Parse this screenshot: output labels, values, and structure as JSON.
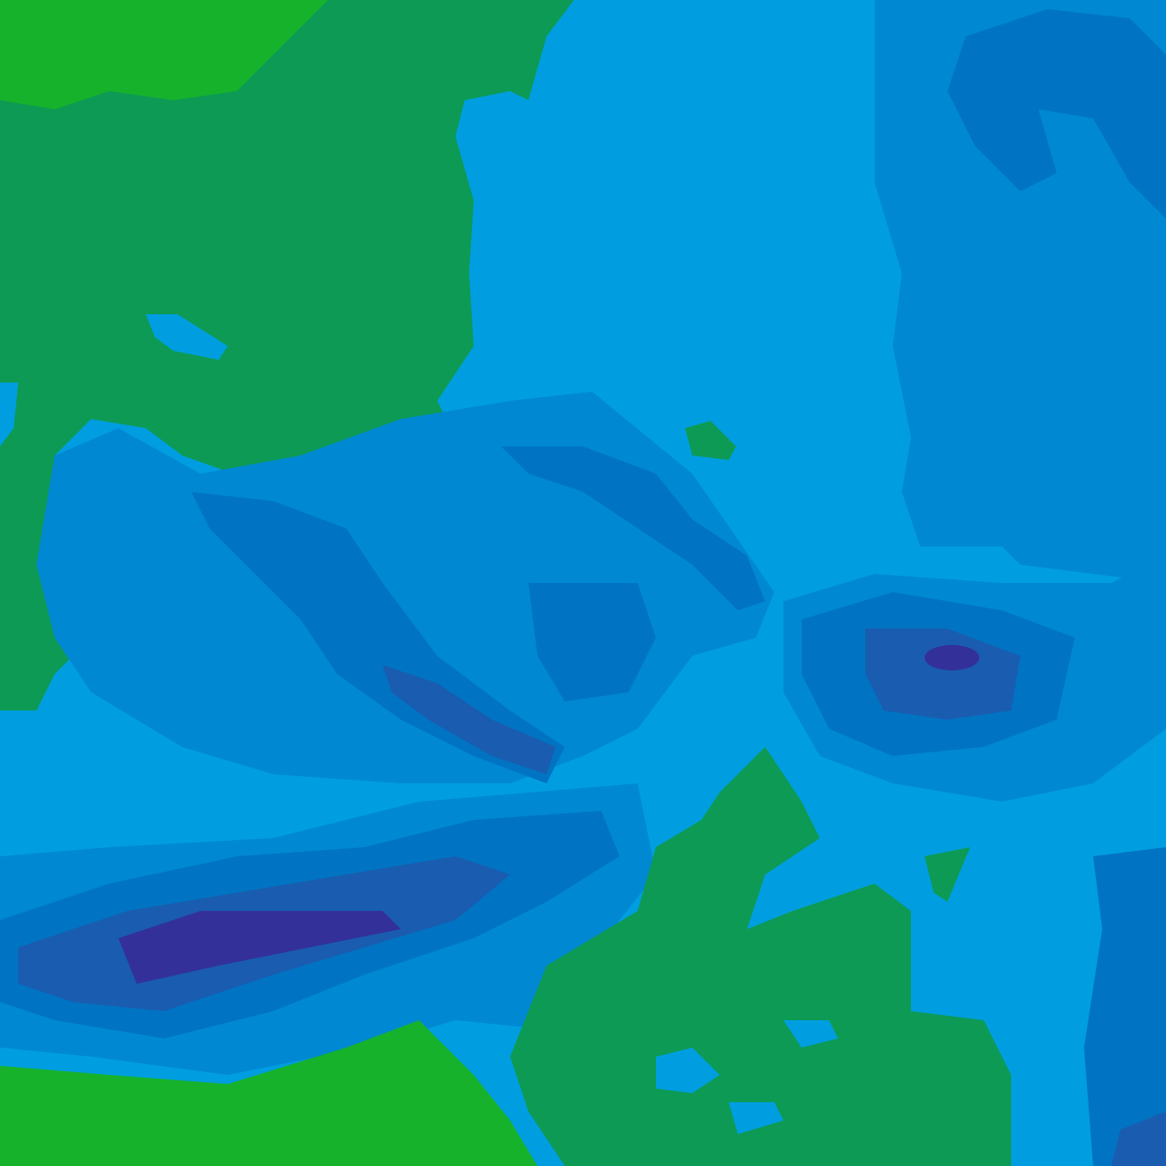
{
  "map": {
    "type": "elevation-tile",
    "colors": {
      "lowland_bright": "#16b22c",
      "lowland": "#0d9a55",
      "water_light": "#009ee0",
      "mid": "#0089d2",
      "high": "#0074c2",
      "higher": "#1a5cb0",
      "peak": "#33309a"
    }
  }
}
